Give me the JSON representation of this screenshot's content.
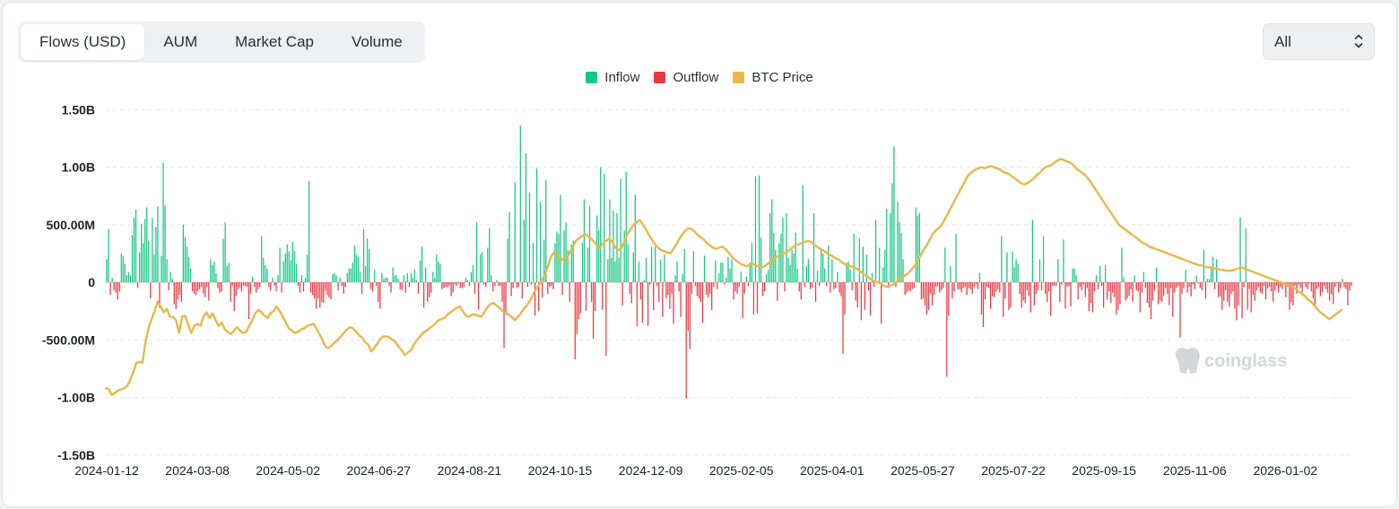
{
  "tabs": [
    {
      "label": "Flows (USD)",
      "active": true
    },
    {
      "label": "AUM",
      "active": false
    },
    {
      "label": "Market Cap",
      "active": false
    },
    {
      "label": "Volume",
      "active": false
    }
  ],
  "range_select": {
    "value": "All"
  },
  "watermark": "coinglass",
  "colors": {
    "inflow": "#16c784",
    "outflow": "#ea3943",
    "btc": "#e8b84b",
    "grid": "#e6e8eb"
  },
  "chart_data": {
    "type": "bar",
    "title": "",
    "legend": [
      {
        "name": "Inflow",
        "color": "#16c784"
      },
      {
        "name": "Outflow",
        "color": "#ea3943"
      },
      {
        "name": "BTC Price",
        "color": "#e8b84b"
      }
    ],
    "y_ticks": [
      "1.50B",
      "1.00B",
      "500.00M",
      "0",
      "-500.00M",
      "-1.00B",
      "-1.50B"
    ],
    "ylim": [
      -1500000000,
      1500000000
    ],
    "x_ticks": [
      "2024-01-12",
      "2024-03-08",
      "2024-05-02",
      "2024-06-27",
      "2024-08-21",
      "2024-10-15",
      "2024-12-09",
      "2025-02-05",
      "2025-04-01",
      "2025-05-27",
      "2025-07-22",
      "2025-09-15",
      "2025-11-06",
      "2026-01-02"
    ],
    "x_range": [
      "2024-01-12",
      "2026-02-05"
    ],
    "series": [
      {
        "name": "Daily Net Flow (USD, M)",
        "period": "2024-01-12 to 2026-02-05, trading days",
        "values": [
          200,
          460,
          -110,
          40,
          -70,
          -90,
          -150,
          -80,
          250,
          230,
          160,
          60,
          90,
          60,
          410,
          560,
          630,
          -50,
          260,
          510,
          340,
          550,
          650,
          360,
          -140,
          560,
          240,
          480,
          660,
          -220,
          230,
          1040,
          670,
          200,
          -70,
          90,
          30,
          -190,
          -230,
          -150,
          -110,
          -170,
          500,
          390,
          310,
          220,
          120,
          -80,
          -100,
          -110,
          -80,
          -60,
          -40,
          -100,
          -130,
          -40,
          -160,
          200,
          150,
          180,
          80,
          -50,
          -90,
          -80,
          380,
          520,
          140,
          170,
          -170,
          -30,
          -250,
          -120,
          -60,
          -50,
          -80,
          -30,
          -30,
          -40,
          -320,
          -100,
          50,
          -40,
          -90,
          -60,
          -40,
          400,
          210,
          150,
          120,
          -40,
          -70,
          40,
          -30,
          -80,
          60,
          300,
          -90,
          180,
          250,
          330,
          270,
          190,
          350,
          270,
          160,
          -30,
          -90,
          60,
          -80,
          40,
          240,
          880,
          -90,
          -110,
          -140,
          -230,
          -140,
          -220,
          -170,
          -180,
          -70,
          -110,
          -130,
          -150,
          70,
          80,
          60,
          -70,
          40,
          -30,
          -100,
          -40,
          80,
          120,
          120,
          170,
          320,
          240,
          220,
          90,
          -100,
          460,
          140,
          380,
          290,
          -60,
          -80,
          110,
          -30,
          -170,
          -230,
          80,
          30,
          40,
          40,
          -30,
          -90,
          130,
          60,
          60,
          30,
          -60,
          -70,
          60,
          -90,
          80,
          -40,
          80,
          40,
          110,
          20,
          -100,
          190,
          310,
          -220,
          130,
          -170,
          -130,
          -90,
          90,
          40,
          240,
          180,
          160,
          -60,
          -50,
          -40,
          -40,
          -30,
          -120,
          -90,
          -20,
          -30,
          -10,
          -50,
          -50,
          -40,
          40,
          20,
          -30,
          90,
          150,
          -100,
          520,
          -240,
          240,
          260,
          -20,
          -40,
          300,
          470,
          60,
          -80,
          -30,
          20,
          -30,
          -30,
          -170,
          -570,
          -270,
          380,
          610,
          -120,
          -50,
          870,
          -50,
          -40,
          1360,
          -140,
          540,
          1120,
          -40,
          780,
          -20,
          340,
          -290,
          990,
          -250,
          700,
          -130,
          370,
          890,
          -100,
          -40,
          -30,
          -60,
          340,
          440,
          420,
          760,
          -110,
          450,
          520,
          280,
          -170,
          330,
          360,
          -670,
          -450,
          -320,
          -270,
          340,
          720,
          -250,
          300,
          660,
          -170,
          -490,
          -250,
          580,
          450,
          1000,
          -240,
          940,
          -640,
          200,
          720,
          210,
          620,
          180,
          600,
          210,
          900,
          -200,
          450,
          960,
          330,
          -100,
          -180,
          260,
          760,
          -380,
          180,
          -150,
          -350,
          20,
          210,
          -380,
          -20,
          310,
          -240,
          310,
          -30,
          -170,
          200,
          -300,
          240,
          -140,
          -110,
          -230,
          -100,
          -360,
          60,
          180,
          -80,
          -300,
          70,
          290,
          -1010,
          -420,
          -580,
          -100,
          270,
          -30,
          -120,
          -140,
          -170,
          -350,
          230,
          -110,
          -130,
          -100,
          -240,
          -40,
          190,
          -60,
          80,
          170,
          170,
          -20,
          40,
          220,
          120,
          200,
          -150,
          -80,
          -100,
          -40,
          90,
          -310,
          -100,
          50,
          -30,
          170,
          340,
          -280,
          920,
          -270,
          930,
          390,
          -120,
          -80,
          70,
          110,
          600,
          720,
          430,
          280,
          -160,
          340,
          420,
          560,
          -80,
          600,
          210,
          150,
          280,
          250,
          430,
          120,
          -80,
          -150,
          840,
          -40,
          140,
          200,
          -60,
          -50,
          600,
          -170,
          100,
          -30,
          300,
          250,
          120,
          -30,
          320,
          -90,
          200,
          -60,
          -50,
          90,
          -90,
          -120,
          -620,
          -280,
          170,
          180,
          110,
          -70,
          420,
          -160,
          -220,
          380,
          -330,
          310,
          -240,
          240,
          -70,
          -290,
          80,
          -40,
          540,
          -10,
          300,
          -360,
          130,
          280,
          640,
          -50,
          600,
          860,
          1180,
          -40,
          700,
          520,
          430,
          200,
          -110,
          -90,
          -70,
          -80,
          -60,
          -50,
          650,
          580,
          600,
          -150,
          -140,
          -200,
          -280,
          -240,
          -100,
          -200,
          -110,
          -40,
          -30,
          -90,
          -70,
          -50,
          300,
          -820,
          -290,
          140,
          -140,
          -80,
          420,
          -60,
          -60,
          -90,
          -50,
          -40,
          -110,
          -50,
          -60,
          -100,
          -40,
          -20,
          -60,
          80,
          -280,
          -390,
          -150,
          -40,
          -50,
          -230,
          -120,
          -130,
          -80,
          -60,
          -90,
          400,
          -300,
          -140,
          260,
          -240,
          -220,
          270,
          130,
          200,
          160,
          -100,
          -220,
          -160,
          -180,
          -70,
          -120,
          -260,
          540,
          -200,
          -100,
          -70,
          200,
          -70,
          400,
          -100,
          -170,
          -80,
          -290,
          -30,
          -30,
          -30,
          200,
          -170,
          -20,
          370,
          -230,
          -40,
          -30,
          -210,
          120,
          120,
          60,
          -150,
          -40,
          -70,
          -20,
          -130,
          -50,
          -250,
          -180,
          -260,
          -80,
          60,
          -60,
          140,
          -30,
          -220,
          150,
          -150,
          -80,
          -180,
          -90,
          -130,
          -280,
          -240,
          -190,
          300,
          40,
          -160,
          -140,
          -120,
          -60,
          -170,
          60,
          -70,
          -80,
          -260,
          -90,
          90,
          -50,
          -180,
          -220,
          -320,
          -160,
          -70,
          130,
          -190,
          -160,
          -170,
          -120,
          -50,
          -100,
          -200,
          -50,
          -300,
          -90,
          -50,
          -30,
          -480,
          -100,
          -50,
          110,
          -90,
          -40,
          -120,
          -20,
          -60,
          60,
          -10,
          -50,
          -70,
          280,
          -140,
          30,
          30,
          140,
          220,
          -60,
          200,
          -130,
          -120,
          -240,
          -160,
          -70,
          -170,
          -210,
          -100,
          -80,
          -230,
          -330,
          -200,
          560,
          -310,
          -40,
          470,
          -240,
          -60,
          -260,
          -110,
          -160,
          -70,
          -40,
          -90,
          -100,
          -30,
          -150,
          -50,
          -40,
          -80,
          -170,
          -70,
          -30,
          -90,
          -40,
          -60,
          -20,
          -130,
          -40,
          -240,
          -170,
          -200,
          -30,
          -100,
          -20,
          -50,
          -90,
          -10,
          -40,
          -60,
          -10,
          -80,
          -140,
          -200,
          -60,
          -40,
          -120,
          -90,
          -30,
          -60,
          -90,
          -160,
          -100,
          -190,
          -40,
          -10,
          -90,
          -50,
          30,
          -40,
          -60,
          -200,
          -70,
          -30
        ]
      },
      {
        "name": "BTC Price (relative, plotted on secondary axis)",
        "values": [
          -920,
          -930,
          -980,
          -960,
          -940,
          -930,
          -920,
          -900,
          -850,
          -780,
          -700,
          -690,
          -700,
          -520,
          -400,
          -320,
          -250,
          -170,
          -210,
          -260,
          -230,
          -300,
          -300,
          -330,
          -440,
          -300,
          -290,
          -370,
          -440,
          -380,
          -360,
          -380,
          -300,
          -260,
          -310,
          -270,
          -330,
          -380,
          -350,
          -410,
          -430,
          -450,
          -420,
          -390,
          -420,
          -440,
          -430,
          -380,
          -330,
          -270,
          -240,
          -260,
          -290,
          -310,
          -270,
          -250,
          -210,
          -250,
          -300,
          -350,
          -400,
          -420,
          -440,
          -430,
          -410,
          -400,
          -380,
          -370,
          -360,
          -400,
          -450,
          -500,
          -560,
          -570,
          -550,
          -520,
          -500,
          -470,
          -440,
          -410,
          -390,
          -400,
          -430,
          -460,
          -480,
          -520,
          -540,
          -600,
          -570,
          -530,
          -490,
          -470,
          -470,
          -480,
          -500,
          -520,
          -560,
          -590,
          -630,
          -610,
          -590,
          -540,
          -500,
          -470,
          -440,
          -420,
          -400,
          -380,
          -360,
          -330,
          -320,
          -310,
          -280,
          -260,
          -240,
          -220,
          -210,
          -250,
          -290,
          -300,
          -280,
          -280,
          -290,
          -300,
          -260,
          -220,
          -190,
          -180,
          -200,
          -220,
          -250,
          -270,
          -280,
          -300,
          -330,
          -300,
          -270,
          -230,
          -200,
          -160,
          -110,
          -60,
          -20,
          20,
          80,
          150,
          230,
          260,
          240,
          180,
          210,
          200,
          260,
          300,
          360,
          380,
          400,
          420,
          400,
          380,
          350,
          320,
          300,
          340,
          360,
          380,
          350,
          300,
          280,
          300,
          360,
          420,
          460,
          500,
          520,
          540,
          500,
          460,
          410,
          370,
          330,
          300,
          280,
          270,
          260,
          250,
          290,
          330,
          380,
          420,
          450,
          470,
          460,
          440,
          410,
          390,
          370,
          340,
          320,
          300,
          290,
          300,
          310,
          290,
          260,
          230,
          200,
          180,
          160,
          150,
          140,
          150,
          160,
          150,
          140,
          130,
          140,
          160,
          190,
          210,
          220,
          240,
          250,
          260,
          280,
          300,
          320,
          330,
          340,
          350,
          360,
          350,
          330,
          310,
          290,
          280,
          260,
          240,
          230,
          210,
          200,
          180,
          160,
          150,
          140,
          130,
          120,
          100,
          80,
          60,
          40,
          20,
          10,
          0,
          -10,
          -30,
          -40,
          -30,
          -20,
          0,
          20,
          40,
          60,
          80,
          110,
          140,
          180,
          230,
          280,
          320,
          370,
          420,
          450,
          470,
          500,
          550,
          600,
          650,
          700,
          750,
          800,
          850,
          900,
          940,
          960,
          980,
          990,
          1000,
          990,
          1000,
          1010,
          1000,
          990,
          980,
          960,
          950,
          940,
          920,
          900,
          880,
          860,
          850,
          860,
          880,
          900,
          930,
          950,
          980,
          1000,
          1010,
          1020,
          1040,
          1060,
          1070,
          1060,
          1050,
          1040,
          1020,
          990,
          970,
          950,
          930,
          900,
          860,
          820,
          780,
          740,
          700,
          660,
          620,
          580,
          540,
          500,
          480,
          460,
          440,
          420,
          400,
          380,
          360,
          340,
          330,
          310,
          300,
          290,
          280,
          270,
          260,
          250,
          240,
          230,
          220,
          210,
          200,
          190,
          180,
          170,
          160,
          150,
          150,
          140,
          130,
          130,
          120,
          120,
          110,
          110,
          100,
          100,
          100,
          110,
          120,
          130,
          120,
          110,
          100,
          90,
          80,
          70,
          60,
          50,
          40,
          30,
          20,
          10,
          0,
          -10,
          -20,
          -30,
          -40,
          -60,
          -80,
          -100,
          -120,
          -150,
          -170,
          -200,
          -230,
          -260,
          -280,
          -300,
          -320,
          -300,
          -280,
          -260,
          -240
        ]
      }
    ]
  }
}
